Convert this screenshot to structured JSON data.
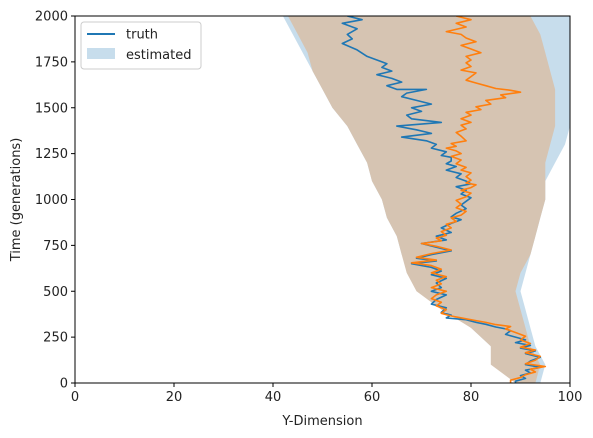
{
  "chart_data": {
    "type": "line",
    "xlabel": "Y-Dimension",
    "ylabel": "Time (generations)",
    "xlim": [
      0,
      100
    ],
    "ylim": [
      0,
      2000
    ],
    "xticks": [
      "0",
      "20",
      "40",
      "60",
      "80",
      "100"
    ],
    "yticks": [
      "0",
      "250",
      "500",
      "750",
      "1000",
      "1250",
      "1500",
      "1750",
      "2000"
    ],
    "grid": false,
    "legend_position": "top-left",
    "legend": [
      {
        "label": "truth",
        "kind": "line",
        "color": "#1f77b4"
      },
      {
        "label": "estimated",
        "kind": "patch",
        "color": "#1f77b4"
      }
    ],
    "series": [
      {
        "name": "truth",
        "color": "#1f77b4",
        "points": [
          [
            55,
            2000
          ],
          [
            58,
            1980
          ],
          [
            54,
            1960
          ],
          [
            57,
            1930
          ],
          [
            55,
            1900
          ],
          [
            56,
            1875
          ],
          [
            54,
            1850
          ],
          [
            57,
            1815
          ],
          [
            59,
            1780
          ],
          [
            61,
            1760
          ],
          [
            63,
            1740
          ],
          [
            62,
            1720
          ],
          [
            64,
            1700
          ],
          [
            61,
            1680
          ],
          [
            64,
            1660
          ],
          [
            66,
            1640
          ],
          [
            63,
            1620
          ],
          [
            65,
            1600
          ],
          [
            71,
            1600
          ],
          [
            67,
            1580
          ],
          [
            66,
            1560
          ],
          [
            69,
            1540
          ],
          [
            72,
            1520
          ],
          [
            68,
            1500
          ],
          [
            70,
            1480
          ],
          [
            67,
            1460
          ],
          [
            68,
            1440
          ],
          [
            74,
            1420
          ],
          [
            65,
            1400
          ],
          [
            69,
            1380
          ],
          [
            72,
            1360
          ],
          [
            66,
            1340
          ],
          [
            71,
            1320
          ],
          [
            73,
            1300
          ],
          [
            72,
            1280
          ],
          [
            75,
            1260
          ],
          [
            74,
            1240
          ],
          [
            76,
            1230
          ],
          [
            76,
            1210
          ],
          [
            75,
            1195
          ],
          [
            77,
            1180
          ],
          [
            75,
            1160
          ],
          [
            78,
            1140
          ],
          [
            77,
            1120
          ],
          [
            79,
            1100
          ],
          [
            80,
            1085
          ],
          [
            77,
            1070
          ],
          [
            79,
            1050
          ],
          [
            78,
            1030
          ],
          [
            80,
            1010
          ],
          [
            79,
            990
          ],
          [
            78,
            970
          ],
          [
            79,
            950
          ],
          [
            77,
            925
          ],
          [
            76,
            905
          ],
          [
            78,
            890
          ],
          [
            76,
            870
          ],
          [
            74,
            845
          ],
          [
            76,
            820
          ],
          [
            73,
            800
          ],
          [
            75,
            780
          ],
          [
            70,
            760
          ],
          [
            73,
            740
          ],
          [
            76,
            720
          ],
          [
            72,
            700
          ],
          [
            69,
            680
          ],
          [
            73,
            665
          ],
          [
            68,
            650
          ],
          [
            72,
            630
          ],
          [
            74,
            610
          ],
          [
            72,
            590
          ],
          [
            75,
            570
          ],
          [
            73,
            545
          ],
          [
            74,
            520
          ],
          [
            72,
            500
          ],
          [
            75,
            480
          ],
          [
            73,
            455
          ],
          [
            72,
            430
          ],
          [
            75,
            410
          ],
          [
            74,
            385
          ],
          [
            76,
            370
          ],
          [
            75,
            355
          ],
          [
            79,
            345
          ],
          [
            81,
            330
          ],
          [
            83,
            320
          ],
          [
            85,
            305
          ],
          [
            87,
            295
          ],
          [
            88,
            285
          ],
          [
            87,
            265
          ],
          [
            89,
            250
          ],
          [
            91,
            235
          ],
          [
            89,
            220
          ],
          [
            92,
            205
          ],
          [
            90,
            190
          ],
          [
            93,
            175
          ],
          [
            91,
            160
          ],
          [
            94,
            140
          ],
          [
            92,
            120
          ],
          [
            91,
            100
          ],
          [
            94,
            85
          ],
          [
            91,
            70
          ],
          [
            92,
            55
          ],
          [
            90,
            40
          ],
          [
            91,
            25
          ],
          [
            89,
            10
          ],
          [
            89,
            0
          ]
        ]
      },
      {
        "name": "",
        "color": "#ff7f0e",
        "points": [
          [
            77,
            2000
          ],
          [
            80,
            1980
          ],
          [
            77,
            1960
          ],
          [
            79,
            1940
          ],
          [
            75,
            1915
          ],
          [
            78,
            1900
          ],
          [
            79,
            1880
          ],
          [
            81,
            1860
          ],
          [
            78,
            1840
          ],
          [
            80,
            1820
          ],
          [
            82,
            1800
          ],
          [
            79,
            1780
          ],
          [
            80,
            1760
          ],
          [
            79,
            1745
          ],
          [
            80,
            1725
          ],
          [
            78,
            1705
          ],
          [
            81,
            1690
          ],
          [
            80,
            1670
          ],
          [
            79,
            1650
          ],
          [
            81,
            1635
          ],
          [
            83,
            1620
          ],
          [
            85,
            1605
          ],
          [
            88,
            1595
          ],
          [
            90,
            1585
          ],
          [
            86,
            1570
          ],
          [
            87,
            1555
          ],
          [
            83,
            1540
          ],
          [
            84,
            1520
          ],
          [
            81,
            1505
          ],
          [
            82,
            1490
          ],
          [
            79,
            1475
          ],
          [
            80,
            1460
          ],
          [
            78,
            1440
          ],
          [
            80,
            1420
          ],
          [
            78,
            1405
          ],
          [
            79,
            1385
          ],
          [
            77,
            1365
          ],
          [
            78,
            1345
          ],
          [
            79,
            1320
          ],
          [
            76,
            1305
          ],
          [
            77,
            1290
          ],
          [
            75,
            1280
          ],
          [
            77,
            1265
          ],
          [
            78,
            1250
          ],
          [
            76,
            1235
          ],
          [
            78,
            1215
          ],
          [
            77,
            1195
          ],
          [
            79,
            1175
          ],
          [
            78,
            1160
          ],
          [
            80,
            1145
          ],
          [
            79,
            1125
          ],
          [
            80,
            1105
          ],
          [
            79,
            1090
          ],
          [
            81,
            1080
          ],
          [
            80,
            1065
          ],
          [
            78,
            1050
          ],
          [
            80,
            1035
          ],
          [
            79,
            1015
          ],
          [
            77,
            995
          ],
          [
            78,
            975
          ],
          [
            77,
            955
          ],
          [
            79,
            935
          ],
          [
            78,
            915
          ],
          [
            76,
            900
          ],
          [
            77,
            880
          ],
          [
            75,
            865
          ],
          [
            76,
            845
          ],
          [
            74,
            825
          ],
          [
            75,
            805
          ],
          [
            73,
            790
          ],
          [
            74,
            775
          ],
          [
            70,
            760
          ],
          [
            73,
            745
          ],
          [
            76,
            725
          ],
          [
            72,
            705
          ],
          [
            69,
            685
          ],
          [
            73,
            670
          ],
          [
            68,
            655
          ],
          [
            72,
            640
          ],
          [
            74,
            620
          ],
          [
            72,
            600
          ],
          [
            75,
            580
          ],
          [
            73,
            560
          ],
          [
            74,
            540
          ],
          [
            72,
            520
          ],
          [
            75,
            500
          ],
          [
            73,
            480
          ],
          [
            72,
            460
          ],
          [
            74,
            440
          ],
          [
            73,
            420
          ],
          [
            75,
            400
          ],
          [
            74,
            380
          ],
          [
            76,
            365
          ],
          [
            79,
            350
          ],
          [
            81,
            340
          ],
          [
            83,
            330
          ],
          [
            85,
            318
          ],
          [
            88,
            308
          ],
          [
            87,
            295
          ],
          [
            89,
            275
          ],
          [
            91,
            255
          ],
          [
            90,
            235
          ],
          [
            92,
            215
          ],
          [
            90,
            195
          ],
          [
            93,
            180
          ],
          [
            91,
            165
          ],
          [
            94,
            145
          ],
          [
            93,
            125
          ],
          [
            91,
            105
          ],
          [
            95,
            90
          ],
          [
            92,
            75
          ],
          [
            93,
            60
          ],
          [
            91,
            45
          ],
          [
            90,
            30
          ],
          [
            88,
            15
          ],
          [
            88,
            0
          ]
        ]
      }
    ],
    "band": {
      "name": "estimated",
      "colors": {
        "blue": "#1f77b4",
        "orange": "#ff7f0e",
        "overlap": "#d6c4b2"
      },
      "blue_lower": [
        [
          0,
          90
        ],
        [
          100,
          85
        ],
        [
          200,
          84
        ],
        [
          300,
          80
        ],
        [
          400,
          75
        ],
        [
          500,
          70
        ],
        [
          600,
          68
        ],
        [
          700,
          66
        ],
        [
          800,
          65
        ],
        [
          900,
          63
        ],
        [
          1000,
          62
        ],
        [
          1100,
          60
        ],
        [
          1200,
          59
        ],
        [
          1300,
          57
        ],
        [
          1400,
          55
        ],
        [
          1500,
          52
        ],
        [
          1600,
          50
        ],
        [
          1700,
          48
        ],
        [
          1800,
          46
        ],
        [
          1900,
          44
        ],
        [
          2000,
          42
        ]
      ],
      "blue_upper": [
        [
          0,
          94
        ],
        [
          100,
          95
        ],
        [
          200,
          93
        ],
        [
          300,
          92
        ],
        [
          400,
          91
        ],
        [
          500,
          90
        ],
        [
          600,
          91
        ],
        [
          700,
          92
        ],
        [
          800,
          93
        ],
        [
          900,
          94
        ],
        [
          1000,
          95
        ],
        [
          1100,
          95
        ],
        [
          1200,
          97
        ],
        [
          1300,
          99
        ],
        [
          1400,
          100
        ],
        [
          1500,
          100
        ],
        [
          1600,
          100
        ],
        [
          1700,
          100
        ],
        [
          1800,
          100
        ],
        [
          1900,
          100
        ],
        [
          2000,
          100
        ]
      ],
      "orange_lower": [
        [
          0,
          89
        ],
        [
          100,
          84
        ],
        [
          200,
          84
        ],
        [
          300,
          80
        ],
        [
          400,
          74
        ],
        [
          500,
          69
        ],
        [
          600,
          67
        ],
        [
          700,
          66
        ],
        [
          800,
          65
        ],
        [
          900,
          63
        ],
        [
          1000,
          62
        ],
        [
          1100,
          60
        ],
        [
          1200,
          59
        ],
        [
          1300,
          57
        ],
        [
          1400,
          55
        ],
        [
          1500,
          52
        ],
        [
          1600,
          50
        ],
        [
          1700,
          48
        ],
        [
          1800,
          47
        ],
        [
          1900,
          45
        ],
        [
          2000,
          43
        ]
      ],
      "orange_upper": [
        [
          0,
          93
        ],
        [
          100,
          94
        ],
        [
          200,
          92
        ],
        [
          300,
          91
        ],
        [
          400,
          90
        ],
        [
          500,
          89
        ],
        [
          600,
          90
        ],
        [
          700,
          92
        ],
        [
          800,
          93
        ],
        [
          900,
          94
        ],
        [
          1000,
          95
        ],
        [
          1100,
          95
        ],
        [
          1200,
          95
        ],
        [
          1300,
          96
        ],
        [
          1400,
          97
        ],
        [
          1500,
          97
        ],
        [
          1600,
          97
        ],
        [
          1700,
          96
        ],
        [
          1800,
          95
        ],
        [
          1900,
          94
        ],
        [
          2000,
          92
        ]
      ]
    }
  }
}
